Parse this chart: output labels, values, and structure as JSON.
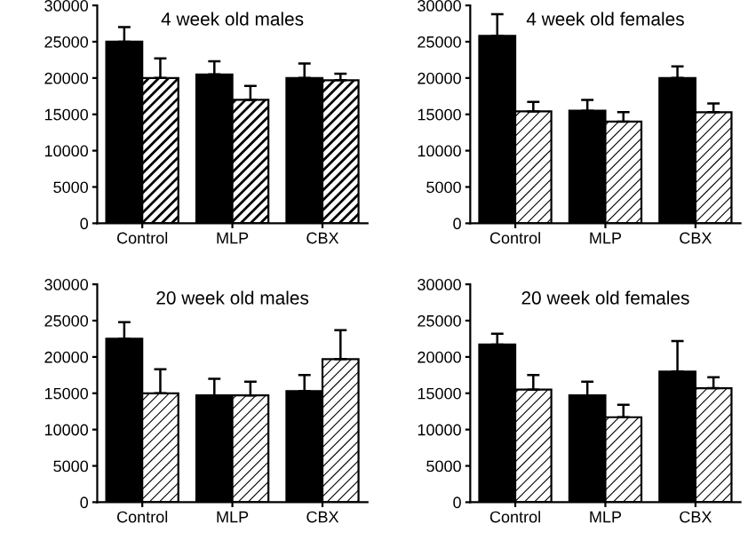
{
  "chart_data": [
    {
      "type": "bar",
      "title": "4 week old males",
      "categories": [
        "Control",
        "MLP",
        "CBX"
      ],
      "ylim": [
        0,
        30000
      ],
      "yticks": [
        0,
        5000,
        10000,
        15000,
        20000,
        25000,
        30000
      ],
      "series": [
        {
          "color": "#000000",
          "values": [
            25000,
            20500,
            20000
          ],
          "errors": [
            [
              25000,
              27000
            ],
            [
              20500,
              22300
            ],
            [
              20000,
              22000
            ]
          ]
        },
        {
          "color": "#000000",
          "values": [
            20000,
            17000,
            19700
          ],
          "errors": [
            [
              20000,
              22700
            ],
            [
              17000,
              18900
            ],
            [
              19700,
              20600
            ]
          ]
        }
      ]
    },
    {
      "type": "bar",
      "title": "4 week old females",
      "categories": [
        "Control",
        "MLP",
        "CBX"
      ],
      "ylim": [
        0,
        30000
      ],
      "yticks": [
        0,
        5000,
        10000,
        15000,
        20000,
        25000,
        30000
      ],
      "series": [
        {
          "color": "#000000",
          "values": [
            25800,
            15500,
            20000
          ],
          "errors": [
            [
              25800,
              28800
            ],
            [
              15500,
              17000
            ],
            [
              20000,
              21600
            ]
          ]
        },
        {
          "color": "#000000",
          "values": [
            15400,
            14000,
            15300
          ],
          "errors": [
            [
              15400,
              16700
            ],
            [
              14000,
              15300
            ],
            [
              15300,
              16500
            ]
          ]
        }
      ]
    },
    {
      "type": "bar",
      "title": "20 week old males",
      "categories": [
        "Control",
        "MLP",
        "CBX"
      ],
      "ylim": [
        0,
        30000
      ],
      "yticks": [
        0,
        5000,
        10000,
        15000,
        20000,
        25000,
        30000
      ],
      "series": [
        {
          "color": "#000000",
          "values": [
            22500,
            14700,
            15300
          ],
          "errors": [
            [
              22500,
              24800
            ],
            [
              14700,
              17000
            ],
            [
              15300,
              17500
            ]
          ]
        },
        {
          "color": "#000000",
          "values": [
            15000,
            14700,
            19700
          ],
          "errors": [
            [
              15000,
              18300
            ],
            [
              14700,
              16600
            ],
            [
              19700,
              23700
            ]
          ]
        }
      ]
    },
    {
      "type": "bar",
      "title": "20 week old females",
      "categories": [
        "Control",
        "MLP",
        "CBX"
      ],
      "ylim": [
        0,
        30000
      ],
      "yticks": [
        0,
        5000,
        10000,
        15000,
        20000,
        25000,
        30000
      ],
      "series": [
        {
          "color": "#000000",
          "values": [
            21700,
            14700,
            18000
          ],
          "errors": [
            [
              21700,
              23200
            ],
            [
              14700,
              16600
            ],
            [
              18000,
              22200
            ]
          ]
        },
        {
          "color": "#000000",
          "values": [
            15500,
            11700,
            15700
          ],
          "errors": [
            [
              15500,
              17500
            ],
            [
              11700,
              13400
            ],
            [
              15700,
              17200
            ]
          ]
        }
      ]
    }
  ]
}
